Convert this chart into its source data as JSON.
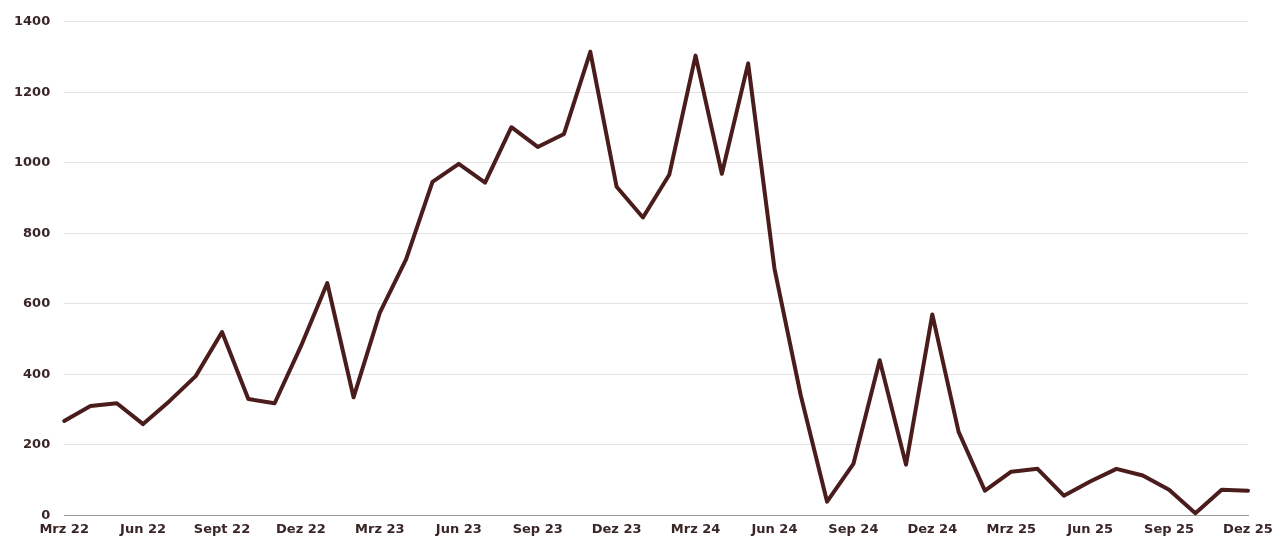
{
  "chart_data": {
    "type": "line",
    "categories": [
      "Mrz 22",
      null,
      null,
      "Jun 22",
      null,
      null,
      "Sept 22",
      null,
      null,
      "Dez 22",
      null,
      null,
      "Mrz 23",
      null,
      null,
      "Jun 23",
      null,
      null,
      "Sep 23",
      null,
      null,
      "Dez 23",
      null,
      null,
      "Mrz 24",
      null,
      null,
      "Jun 24",
      null,
      null,
      "Sep 24",
      null,
      null,
      "Dez 24",
      null,
      null,
      "Mrz 25",
      null,
      null,
      "Jun 25",
      null,
      null,
      "Sep 25",
      null,
      null,
      "Dez 25"
    ],
    "series": [
      {
        "color": "#4a1c1c",
        "values": [
          268,
          310,
          318,
          259,
          324,
          395,
          520,
          330,
          318,
          480,
          659,
          335,
          575,
          727,
          946,
          997,
          944,
          1101,
          1045,
          1082,
          1315,
          932,
          845,
          966,
          1304,
          969,
          1282,
          700,
          340,
          39,
          146,
          440,
          144,
          570,
          237,
          70,
          124,
          132,
          56,
          96,
          132,
          113,
          73,
          6,
          73,
          70
        ]
      }
    ],
    "ylim": [
      0,
      1400
    ],
    "yticks": [
      0,
      200,
      400,
      600,
      800,
      1000,
      1200,
      1400
    ],
    "grid": "y",
    "legend": false,
    "marker": "none",
    "line_style": "solid"
  }
}
